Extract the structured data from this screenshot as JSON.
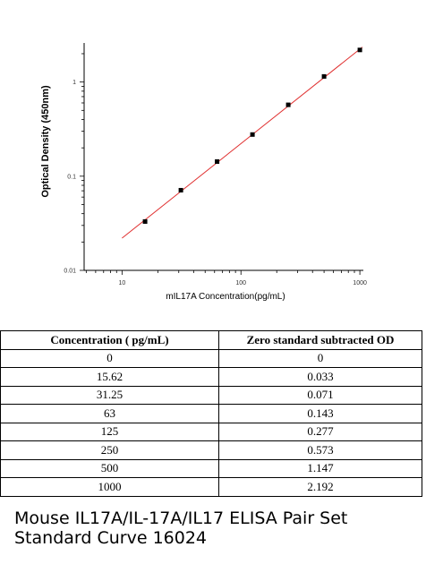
{
  "chart_data": {
    "type": "scatter",
    "xlabel": "mIL17A  Concentration(pg/mL)",
    "ylabel": "Optical Density (450nm)",
    "x_scale": "log",
    "y_scale": "log",
    "xlim": [
      4.8,
      1070
    ],
    "ylim": [
      0.01,
      2.6
    ],
    "x_ticks": [
      {
        "value": 10,
        "label": "10"
      },
      {
        "value": 100,
        "label": "100"
      },
      {
        "value": 1000,
        "label": "1000"
      }
    ],
    "y_ticks": [
      {
        "value": 0.01,
        "label": "0.01"
      },
      {
        "value": 0.1,
        "label": "0.1"
      },
      {
        "value": 1,
        "label": "1"
      }
    ],
    "grid": false,
    "x": [
      15.62,
      31.25,
      63,
      125,
      250,
      500,
      1000
    ],
    "y": [
      0.033,
      0.071,
      0.143,
      0.277,
      0.573,
      1.147,
      2.192
    ],
    "fit_line": {
      "x": [
        10,
        1050
      ],
      "y": [
        0.022,
        2.35
      ],
      "color": "#e03030"
    },
    "marker_color": "#000000"
  },
  "table": {
    "headers": [
      "Concentration ( pg/mL)",
      "Zero standard subtracted OD"
    ],
    "rows": [
      [
        "0",
        "0"
      ],
      [
        "15.62",
        "0.033"
      ],
      [
        "31.25",
        "0.071"
      ],
      [
        "63",
        "0.143"
      ],
      [
        "125",
        "0.277"
      ],
      [
        "250",
        "0.573"
      ],
      [
        "500",
        "1.147"
      ],
      [
        "1000",
        "2.192"
      ]
    ]
  },
  "caption": {
    "line1": "Mouse IL17A/IL-17A/IL17 ELISA Pair Set",
    "line2": "Standard Curve 16024"
  }
}
